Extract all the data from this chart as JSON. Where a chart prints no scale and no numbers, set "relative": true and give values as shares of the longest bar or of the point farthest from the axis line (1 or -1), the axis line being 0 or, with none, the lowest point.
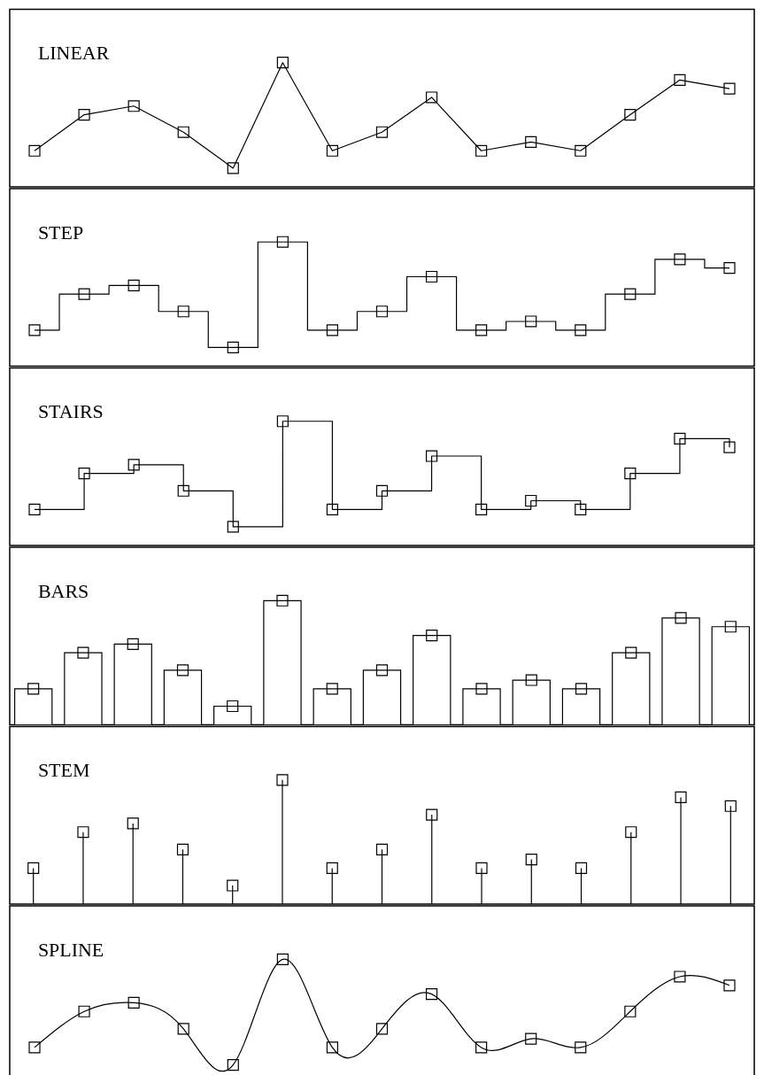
{
  "chart_data": [
    {
      "type": "line",
      "title": "LINEAR",
      "relative": true,
      "marker": "square",
      "grid": false,
      "tick_labels": false,
      "categories": [
        null,
        null,
        null,
        null,
        null,
        null,
        null,
        null,
        null,
        null,
        null,
        null,
        null,
        null,
        null
      ],
      "series": [
        {
          "color": "#000000",
          "values": [
            0.29,
            0.58,
            0.65,
            0.44,
            0.15,
            1,
            0.29,
            0.44,
            0.72,
            0.29,
            0.36,
            0.29,
            0.58,
            0.86,
            0.79
          ]
        }
      ]
    },
    {
      "type": "step",
      "title": "STEP",
      "relative": true,
      "marker": "square",
      "grid": false,
      "tick_labels": false,
      "categories": [
        null,
        null,
        null,
        null,
        null,
        null,
        null,
        null,
        null,
        null,
        null,
        null,
        null,
        null,
        null
      ],
      "series": [
        {
          "color": "#000000",
          "values": [
            0.29,
            0.58,
            0.65,
            0.44,
            0.15,
            1,
            0.29,
            0.44,
            0.72,
            0.29,
            0.36,
            0.29,
            0.58,
            0.86,
            0.79
          ]
        }
      ]
    },
    {
      "type": "step",
      "title": "STAIRS",
      "relative": true,
      "marker": "square",
      "grid": false,
      "tick_labels": false,
      "categories": [
        null,
        null,
        null,
        null,
        null,
        null,
        null,
        null,
        null,
        null,
        null,
        null,
        null,
        null,
        null
      ],
      "series": [
        {
          "color": "#000000",
          "values": [
            0.29,
            0.58,
            0.65,
            0.44,
            0.15,
            1,
            0.29,
            0.44,
            0.72,
            0.29,
            0.36,
            0.29,
            0.58,
            0.86,
            0.79
          ]
        }
      ]
    },
    {
      "type": "bar",
      "title": "BARS",
      "relative": true,
      "grid": false,
      "tick_labels": false,
      "categories": [
        null,
        null,
        null,
        null,
        null,
        null,
        null,
        null,
        null,
        null,
        null,
        null,
        null,
        null,
        null
      ],
      "series": [
        {
          "color": "#ffffff",
          "values": [
            0.29,
            0.58,
            0.65,
            0.44,
            0.15,
            1,
            0.29,
            0.44,
            0.72,
            0.29,
            0.36,
            0.29,
            0.58,
            0.86,
            0.79
          ]
        },
        {
          "type": "scatter",
          "marker": "square",
          "color": "#000000",
          "values": [
            0.29,
            0.58,
            0.65,
            0.44,
            0.15,
            1,
            0.29,
            0.44,
            0.72,
            0.29,
            0.36,
            0.29,
            0.58,
            0.86,
            0.79
          ]
        }
      ]
    },
    {
      "type": "lollipop",
      "title": "STEM",
      "relative": true,
      "marker": "square",
      "grid": false,
      "tick_labels": false,
      "categories": [
        null,
        null,
        null,
        null,
        null,
        null,
        null,
        null,
        null,
        null,
        null,
        null,
        null,
        null,
        null
      ],
      "series": [
        {
          "color": "#000000",
          "values": [
            0.29,
            0.58,
            0.65,
            0.44,
            0.15,
            1,
            0.29,
            0.44,
            0.72,
            0.29,
            0.36,
            0.29,
            0.58,
            0.86,
            0.79
          ]
        }
      ]
    },
    {
      "type": "line",
      "title": "SPLINE",
      "relative": true,
      "marker": "square",
      "grid": false,
      "tick_labels": false,
      "categories": [
        null,
        null,
        null,
        null,
        null,
        null,
        null,
        null,
        null,
        null,
        null,
        null,
        null,
        null,
        null
      ],
      "series": [
        {
          "color": "#000000",
          "values": [
            0.29,
            0.58,
            0.65,
            0.44,
            0.15,
            1,
            0.29,
            0.44,
            0.72,
            0.29,
            0.36,
            0.29,
            0.58,
            0.86,
            0.79
          ]
        }
      ]
    }
  ]
}
